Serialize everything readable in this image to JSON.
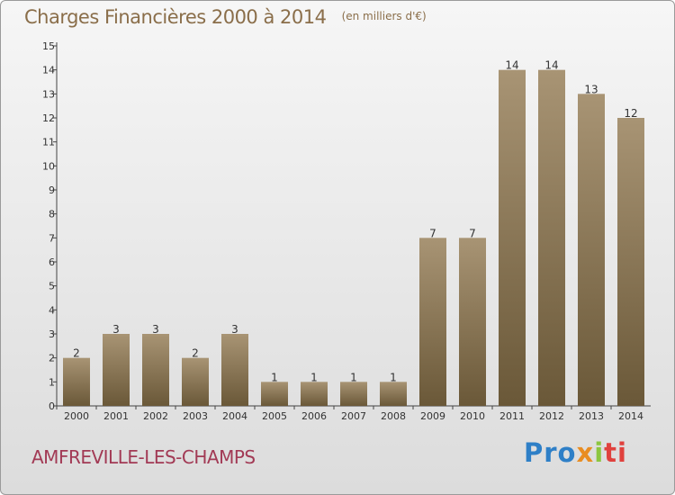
{
  "header": {
    "title": "Charges Financières 2000 à 2014",
    "subtitle": "(en milliers d'€)"
  },
  "footer": {
    "town": "AMFREVILLE-LES-CHAMPS",
    "logo_parts": [
      "Pro",
      "x",
      "i",
      "ti"
    ]
  },
  "colors": {
    "bar_light": "#a89474",
    "bar_dark": "#6a5838",
    "title": "#8a6e4a",
    "town": "#a23a55"
  },
  "chart_data": {
    "type": "bar",
    "title": "Charges Financières 2000 à 2014",
    "subtitle": "(en milliers d'€)",
    "categories": [
      "2000",
      "2001",
      "2002",
      "2003",
      "2004",
      "2005",
      "2006",
      "2007",
      "2008",
      "2009",
      "2010",
      "2011",
      "2012",
      "2013",
      "2014"
    ],
    "values": [
      2,
      3,
      3,
      2,
      3,
      1,
      1,
      1,
      1,
      7,
      7,
      14,
      14,
      13,
      12
    ],
    "ylim": [
      0,
      15
    ],
    "yticks": [
      0,
      1,
      2,
      3,
      4,
      5,
      6,
      7,
      8,
      9,
      10,
      11,
      12,
      13,
      14,
      15
    ],
    "grid": false,
    "legend": "none"
  }
}
